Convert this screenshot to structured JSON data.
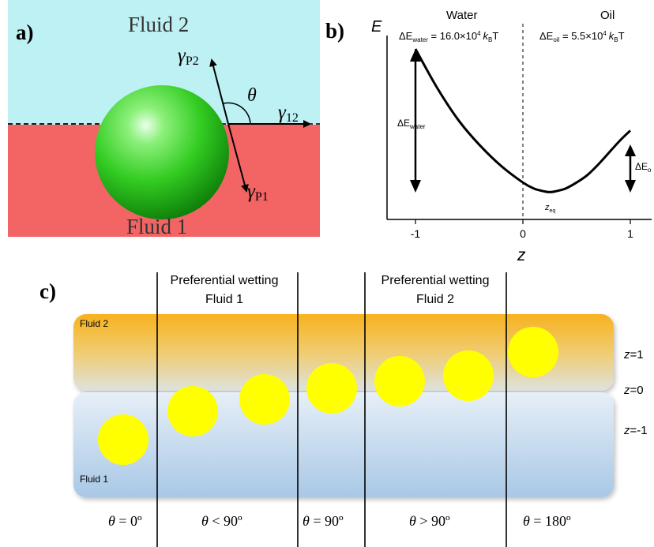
{
  "panel_a": {
    "label": "a)",
    "fluid_top": "Fluid 2",
    "fluid_bottom": "Fluid 1",
    "gamma_p2_sym": "γ",
    "gamma_p2_sub": "P2",
    "gamma_p1_sym": "γ",
    "gamma_p1_sub": "P1",
    "gamma_12_sym": "γ",
    "gamma_12_sub": "12",
    "theta": "θ",
    "colors": {
      "top": "#bdf1f3",
      "bottom": "#f36464",
      "sphere": "#33cc22"
    }
  },
  "panel_b": {
    "label": "b)",
    "y_axis_label": "E",
    "x_axis_label": "z",
    "region_left": "Water",
    "region_right": "Oil",
    "energy_water": {
      "delta": "ΔE",
      "sub": "water",
      "value": " = 16.0×10",
      "exp": "4",
      "k": "k",
      "kb": "B",
      "t": "T"
    },
    "energy_oil": {
      "delta": "ΔE",
      "sub": "oil",
      "value": " = 5.5×10",
      "exp": "4",
      "k": "k",
      "kb": "B",
      "t": "T"
    },
    "arrow_water": {
      "delta": "ΔE",
      "sub": "water"
    },
    "arrow_oil": {
      "delta": "ΔE",
      "sub": "o"
    },
    "z_eq": {
      "z": "z",
      "sub": "eq"
    },
    "ticks": [
      "-1",
      "0",
      "1"
    ],
    "chart_data": {
      "type": "line",
      "x": [
        -1.0,
        -0.8,
        -0.6,
        -0.4,
        -0.2,
        0.0,
        0.1,
        0.2,
        0.25,
        0.3,
        0.4,
        0.5,
        0.6,
        0.7,
        0.8,
        0.9,
        1.0
      ],
      "y": [
        1.0,
        0.74,
        0.52,
        0.35,
        0.21,
        0.1,
        0.06,
        0.04,
        0.035,
        0.04,
        0.06,
        0.1,
        0.15,
        0.22,
        0.3,
        0.38,
        0.45
      ],
      "xlim": [
        -1,
        1
      ],
      "ylim": [
        0,
        1
      ],
      "xlabel": "z",
      "ylabel": "E"
    }
  },
  "panel_c": {
    "label": "c)",
    "header_left": [
      "Preferential wetting",
      "Fluid 1"
    ],
    "header_right": [
      "Preferential wetting",
      "Fluid 2"
    ],
    "fluid_top": "Fluid 2",
    "fluid_bottom": "Fluid 1",
    "z_labels": [
      {
        "z": "z",
        "val": "=1"
      },
      {
        "z": "z",
        "val": "=0"
      },
      {
        "z": "z",
        "val": "=-1"
      }
    ],
    "angles": [
      {
        "theta": "θ",
        "rel": " = 0º"
      },
      {
        "theta": "θ",
        "rel": " < 90º"
      },
      {
        "theta": "θ",
        "rel": " = 90º"
      },
      {
        "theta": "θ",
        "rel": " > 90º"
      },
      {
        "theta": "θ",
        "rel": " = 180º"
      }
    ],
    "colors": {
      "top_band": "#f7b733",
      "bottom_band": "#b9d5ec",
      "particle": "#ffff00"
    }
  }
}
